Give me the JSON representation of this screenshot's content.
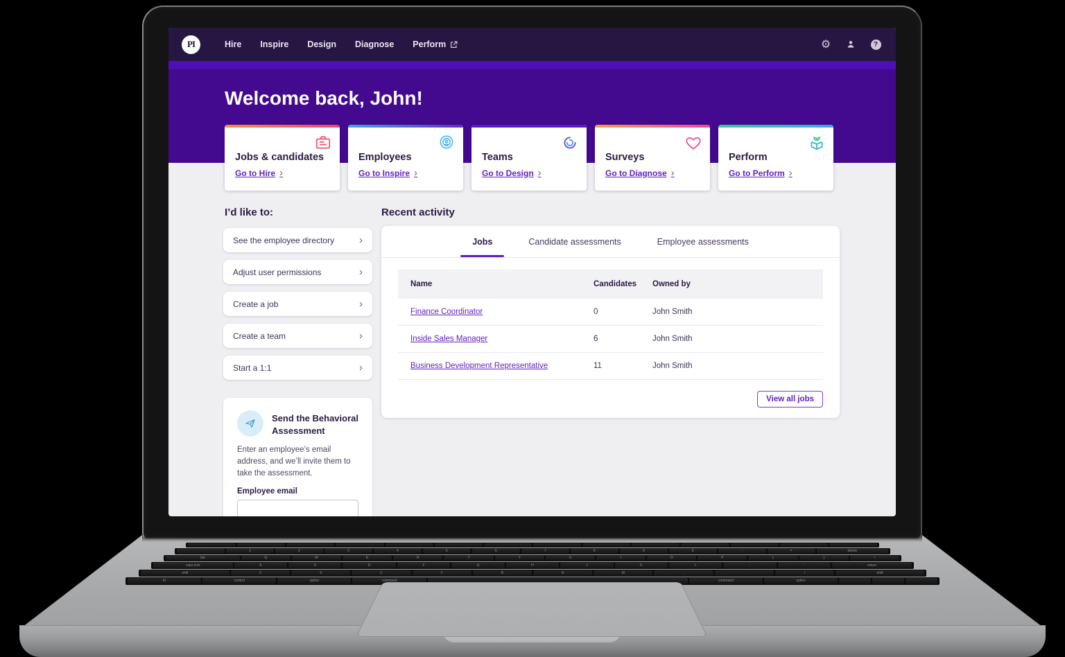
{
  "colors": {
    "nav_bg": "#261642",
    "accent_strip": "#4d10b5",
    "hero_bg": "#43098f",
    "page_bg": "#efeef1",
    "link_purple": "#5e1fc0",
    "heading_dark": "#2b1a42"
  },
  "nav": {
    "logo_text": "PI",
    "items": [
      {
        "label": "Hire"
      },
      {
        "label": "Inspire"
      },
      {
        "label": "Design"
      },
      {
        "label": "Diagnose"
      },
      {
        "label": "Perform",
        "external": true
      }
    ],
    "icons": [
      "settings-icon",
      "user-icon",
      "help-icon"
    ]
  },
  "hero": {
    "greeting": "Welcome back, John!"
  },
  "cards": [
    {
      "title": "Jobs & candidates",
      "link": "Go to Hire",
      "icon": "briefcase-icon",
      "accent": [
        "#f5903d",
        "#e8476c"
      ],
      "icon_color": "#ee5170"
    },
    {
      "title": "Employees",
      "link": "Go to Inspire",
      "icon": "radar-icon",
      "accent": [
        "#38a8e8",
        "#6a28c9"
      ],
      "icon_color": "#49b7ee"
    },
    {
      "title": "Teams",
      "link": "Go to Design",
      "icon": "swirl-icon",
      "accent": [
        "#5c17c9",
        "#5c17c9"
      ],
      "icon_color": "#6b4fe8"
    },
    {
      "title": "Surveys",
      "link": "Go to Diagnose",
      "icon": "heart-icon",
      "accent": [
        "#f5a03d",
        "#ec4899"
      ],
      "icon_color": "#ec4d92"
    },
    {
      "title": "Perform",
      "link": "Go to Perform",
      "icon": "box-sprout-icon",
      "accent": [
        "#2ecf8e",
        "#38a8e8"
      ],
      "icon_color": "#2fb9c7"
    }
  ],
  "idlike": {
    "heading": "I’d like to:",
    "items": [
      "See the employee directory",
      "Adjust user permissions",
      "Create a job",
      "Create a team",
      "Start a 1:1"
    ]
  },
  "ba": {
    "icon": "paper-plane-icon",
    "title": "Send the Behavioral Assessment",
    "description": "Enter an employee’s email address, and we’ll invite them to take the assessment.",
    "email_label": "Employee email",
    "email_value": ""
  },
  "recent": {
    "heading": "Recent activity",
    "tabs": [
      {
        "label": "Jobs",
        "active": true
      },
      {
        "label": "Candidate assessments",
        "active": false
      },
      {
        "label": "Employee assessments",
        "active": false
      }
    ],
    "table": {
      "headers": [
        "Name",
        "Candidates",
        "Owned by"
      ],
      "rows": [
        {
          "name": "Finance Coordinator",
          "candidates": "0",
          "owner": "John Smith"
        },
        {
          "name": "Inside Sales Manager",
          "candidates": "6",
          "owner": "John Smith"
        },
        {
          "name": "Business Development Representative",
          "candidates": "11",
          "owner": "John Smith"
        }
      ]
    },
    "view_all_label": "View all jobs"
  },
  "keyboard": {
    "rows": [
      [
        "",
        "",
        "",
        "",
        "",
        "",
        "",
        "",
        "",
        "",
        "",
        "",
        "",
        ""
      ],
      [
        "`",
        "1",
        "2",
        "3",
        "4",
        "5",
        "6",
        "7",
        "8",
        "9",
        "0",
        "-",
        "=",
        "delete"
      ],
      [
        "tab",
        "Q",
        "W",
        "E",
        "R",
        "T",
        "Y",
        "U",
        "I",
        "O",
        "P",
        "[",
        "]",
        "\\"
      ],
      [
        "caps lock",
        "A",
        "S",
        "D",
        "F",
        "G",
        "H",
        "J",
        "K",
        "L",
        ";",
        "'",
        "return"
      ],
      [
        "shift",
        "Z",
        "X",
        "C",
        "V",
        "B",
        "N",
        "M",
        ",",
        ".",
        "/",
        "shift"
      ],
      [
        "fn",
        "control",
        "option",
        "command",
        " ",
        "command",
        "option",
        "",
        "",
        ""
      ]
    ]
  }
}
